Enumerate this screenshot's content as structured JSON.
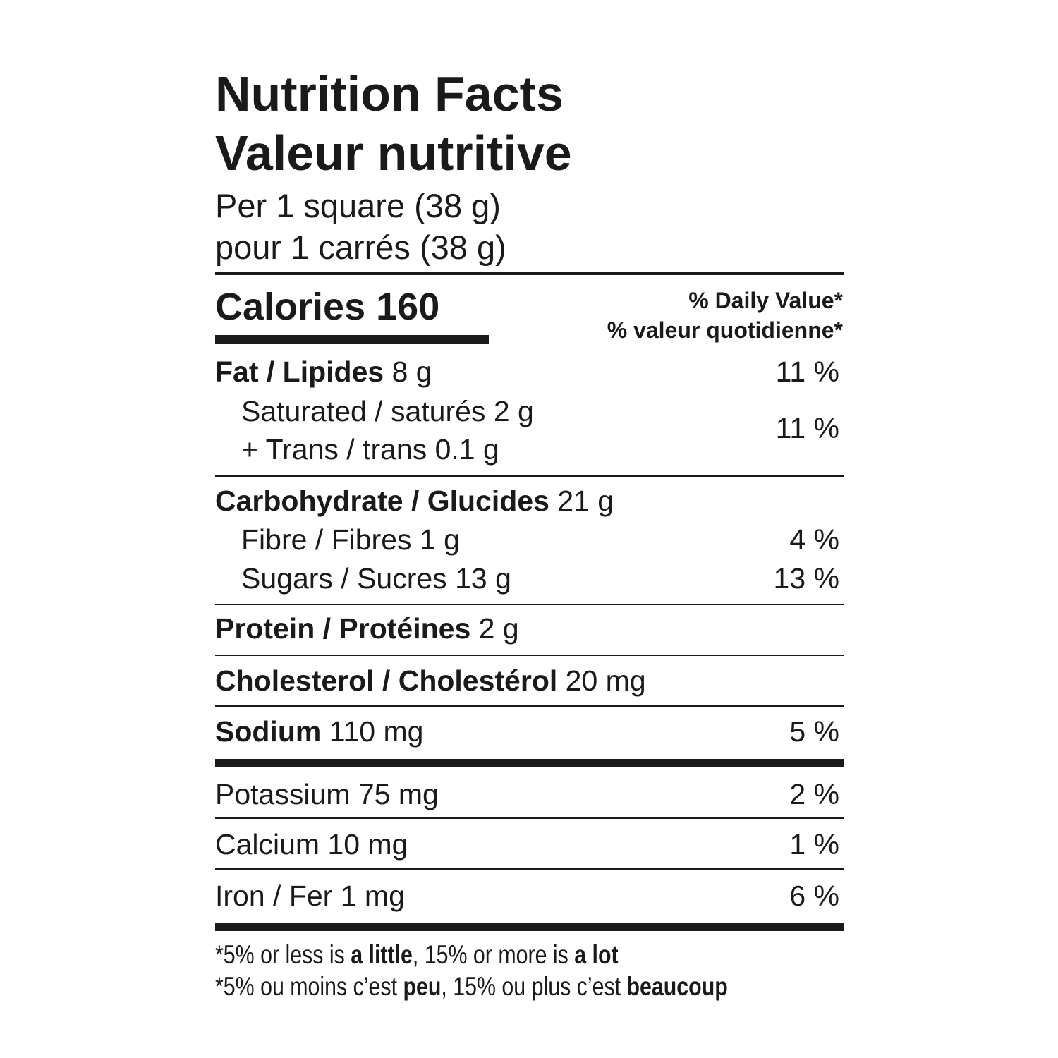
{
  "title_en": "Nutrition Facts",
  "title_fr": "Valeur nutritive",
  "serving_en": "Per 1 square (38 g)",
  "serving_fr": "pour 1 carrés (38 g)",
  "calories_label": "Calories",
  "calories_value": "160",
  "dv_header_en": "% Daily Value*",
  "dv_header_fr": "% valeur quotidienne*",
  "nutrients": {
    "fat": {
      "label": "Fat / Lipides",
      "amount": "8 g",
      "dv": "11 %"
    },
    "saturated": {
      "label": "Saturated / saturés",
      "amount": "2 g"
    },
    "trans": {
      "label": "+ Trans / trans",
      "amount": "0.1 g"
    },
    "sat_trans_dv": "11 %",
    "carbohydrate": {
      "label": "Carbohydrate / Glucides",
      "amount": "21 g"
    },
    "fibre": {
      "label": "Fibre / Fibres",
      "amount": "1 g",
      "dv": "4 %"
    },
    "sugars": {
      "label": "Sugars / Sucres",
      "amount": "13 g",
      "dv": "13 %"
    },
    "protein": {
      "label": "Protein / Protéines",
      "amount": "2 g"
    },
    "cholesterol": {
      "label": "Cholesterol / Cholestérol",
      "amount": "20 mg"
    },
    "sodium": {
      "label": "Sodium",
      "amount": "110 mg",
      "dv": "5 %"
    },
    "potassium": {
      "label": "Potassium",
      "amount": "75 mg",
      "dv": "2 %"
    },
    "calcium": {
      "label": "Calcium",
      "amount": "10 mg",
      "dv": "1 %"
    },
    "iron": {
      "label": "Iron / Fer",
      "amount": "1 mg",
      "dv": "6 %"
    }
  },
  "footnote_en": {
    "a": "*5% or less is ",
    "b": "a little",
    "c": ", 15% or more is ",
    "d": "a lot"
  },
  "footnote_fr": {
    "a": "*5% ou moins c’est ",
    "b": "peu",
    "c": ", 15% ou plus c’est ",
    "d": "beaucoup"
  }
}
